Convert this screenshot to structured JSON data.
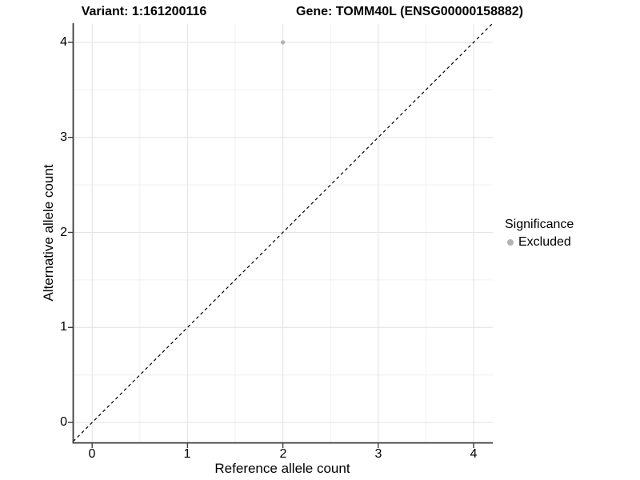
{
  "header": {
    "title_left": "Variant: 1:161200116",
    "title_right": "Gene: TOMM40L (ENSG00000158882)"
  },
  "chart_data": {
    "type": "scatter",
    "title": "Variant: 1:161200116    Gene: TOMM40L (ENSG00000158882)",
    "xlabel": "Reference allele count",
    "ylabel": "Alternative allele count",
    "xlim": [
      -0.2,
      4.2
    ],
    "ylim": [
      -0.2,
      4.2
    ],
    "x_ticks": [
      "0",
      "1",
      "2",
      "3",
      "4"
    ],
    "y_ticks": [
      "0",
      "1",
      "2",
      "3",
      "4"
    ],
    "grid": "major and minor, light gray on white",
    "identity_line": {
      "style": "dashed",
      "color": "#000000",
      "from": [
        -0.2,
        -0.2
      ],
      "to": [
        4.2,
        4.2
      ]
    },
    "series": [
      {
        "name": "Excluded",
        "color": "#b3b3b3",
        "points": [
          {
            "x": 2,
            "y": 4
          }
        ]
      }
    ],
    "legend": {
      "title": "Significance",
      "position": "right",
      "items": [
        {
          "label": "Excluded",
          "color": "#b3b3b3"
        }
      ]
    },
    "colors": {
      "axis_line": "#3c3c3c",
      "grid_major": "#e4e4e4",
      "grid_minor": "#f0f0f0",
      "point": "#b3b3b3",
      "text": "#000000"
    }
  }
}
